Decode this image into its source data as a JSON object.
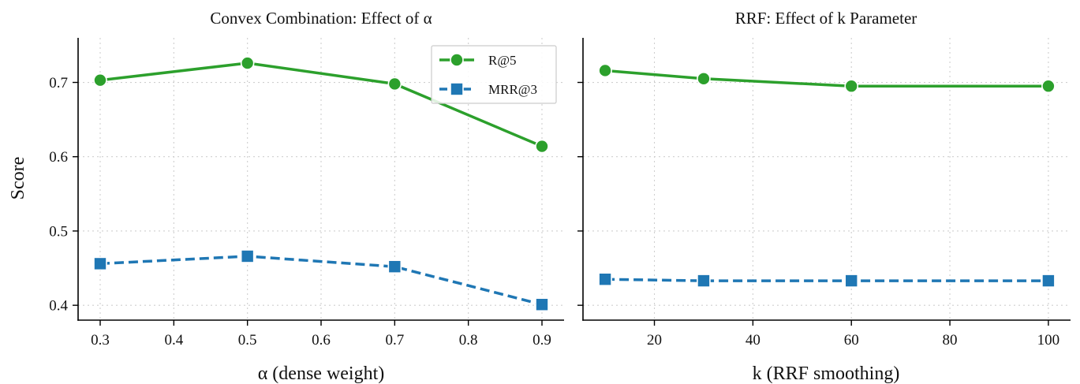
{
  "chart_data": [
    {
      "type": "line",
      "title": "Convex Combination: Effect of α",
      "xlabel": "α (dense weight)",
      "ylabel": "Score",
      "x": [
        0.3,
        0.5,
        0.7,
        0.9
      ],
      "xticks": [
        0.3,
        0.4,
        0.5,
        0.6,
        0.7,
        0.8,
        0.9
      ],
      "xtick_labels": [
        "0.3",
        "0.4",
        "0.5",
        "0.6",
        "0.7",
        "0.8",
        "0.9"
      ],
      "xlim": [
        0.27,
        0.93
      ],
      "yticks": [
        0.4,
        0.5,
        0.6,
        0.7
      ],
      "ytick_labels": [
        "0.4",
        "0.5",
        "0.6",
        "0.7"
      ],
      "ylim": [
        0.38,
        0.76
      ],
      "grid": true,
      "legend": "top-right",
      "series": [
        {
          "name": "R@5",
          "values": [
            0.703,
            0.726,
            0.698,
            0.614
          ],
          "color": "#2ca02c",
          "marker": "circle",
          "line": "solid"
        },
        {
          "name": "MRR@3",
          "values": [
            0.456,
            0.466,
            0.452,
            0.401
          ],
          "color": "#1f77b4",
          "marker": "square",
          "line": "dashed"
        }
      ]
    },
    {
      "type": "line",
      "title": "RRF: Effect of k Parameter",
      "xlabel": "k (RRF smoothing)",
      "ylabel": "",
      "x": [
        10,
        30,
        60,
        100
      ],
      "xticks": [
        20,
        40,
        60,
        80,
        100
      ],
      "xtick_labels": [
        "20",
        "40",
        "60",
        "80",
        "100"
      ],
      "xlim": [
        5.5,
        104.5
      ],
      "yticks": [
        0.4,
        0.5,
        0.6,
        0.7
      ],
      "ytick_labels": [
        "",
        "",
        "",
        ""
      ],
      "ylim": [
        0.38,
        0.76
      ],
      "grid": true,
      "series": [
        {
          "name": "R@5",
          "values": [
            0.716,
            0.705,
            0.695,
            0.695
          ],
          "color": "#2ca02c",
          "marker": "circle",
          "line": "solid"
        },
        {
          "name": "MRR@3",
          "values": [
            0.435,
            0.433,
            0.433,
            0.433
          ],
          "color": "#1f77b4",
          "marker": "square",
          "line": "dashed"
        }
      ]
    }
  ]
}
